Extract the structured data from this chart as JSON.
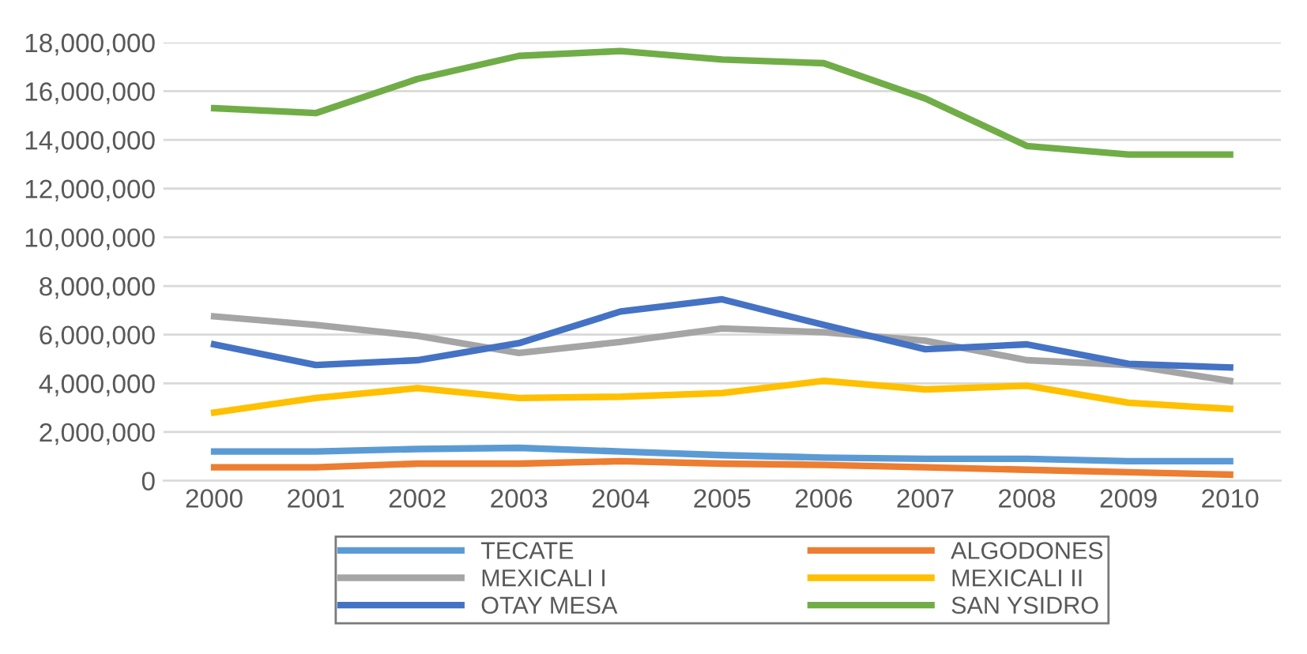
{
  "chart_data": {
    "type": "line",
    "categories": [
      "2000",
      "2001",
      "2002",
      "2003",
      "2004",
      "2005",
      "2006",
      "2007",
      "2008",
      "2009",
      "2010"
    ],
    "series": [
      {
        "name": "TECATE",
        "color": "#5b9bd5",
        "values": [
          1200000,
          1200000,
          1300000,
          1350000,
          1200000,
          1050000,
          950000,
          900000,
          900000,
          800000,
          800000
        ]
      },
      {
        "name": "ALGODONES",
        "color": "#ed7d31",
        "values": [
          550000,
          550000,
          700000,
          700000,
          800000,
          700000,
          650000,
          550000,
          450000,
          350000,
          250000
        ]
      },
      {
        "name": "MEXICALI I",
        "color": "#a5a5a5",
        "values": [
          6750000,
          6400000,
          5950000,
          5250000,
          5700000,
          6250000,
          6100000,
          5750000,
          4950000,
          4750000,
          4100000
        ]
      },
      {
        "name": "MEXICALI II",
        "color": "#ffc000",
        "values": [
          2800000,
          3400000,
          3800000,
          3400000,
          3450000,
          3600000,
          4100000,
          3750000,
          3900000,
          3200000,
          2950000
        ]
      },
      {
        "name": "OTAY MESA",
        "color": "#4472c4",
        "values": [
          5600000,
          4750000,
          4950000,
          5650000,
          6950000,
          7450000,
          6400000,
          5400000,
          5600000,
          4800000,
          4650000
        ]
      },
      {
        "name": "SAN YSIDRO",
        "color": "#70ad47",
        "values": [
          15300000,
          15100000,
          16500000,
          17450000,
          17650000,
          17300000,
          17150000,
          15700000,
          13750000,
          13400000,
          13400000
        ]
      }
    ],
    "ylim": [
      0,
      18000000
    ],
    "yticks": [
      {
        "value": 0,
        "label": "0"
      },
      {
        "value": 2000000,
        "label": "2,000,000"
      },
      {
        "value": 4000000,
        "label": "4,000,000"
      },
      {
        "value": 6000000,
        "label": "6,000,000"
      },
      {
        "value": 8000000,
        "label": "8,000,000"
      },
      {
        "value": 10000000,
        "label": "10,000,000"
      },
      {
        "value": 12000000,
        "label": "12,000,000"
      },
      {
        "value": 14000000,
        "label": "14,000,000"
      },
      {
        "value": 16000000,
        "label": "16,000,000"
      },
      {
        "value": 18000000,
        "label": "18,000,000"
      }
    ],
    "grid": "y",
    "legend": "bottom",
    "marker": "none",
    "line_style": "solid"
  }
}
